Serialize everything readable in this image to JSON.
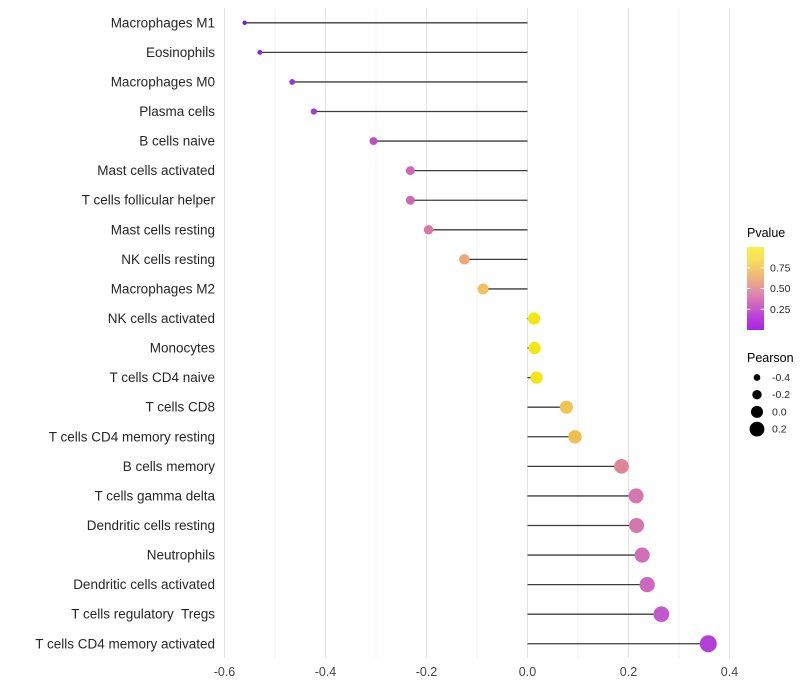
{
  "chart_data": {
    "type": "lollipop",
    "orientation": "horizontal",
    "title": "",
    "xlabel": "",
    "ylabel": "",
    "xlim": [
      -0.65,
      0.45
    ],
    "x_ticks": [
      -0.6,
      -0.4,
      -0.2,
      0.0,
      0.2,
      0.4
    ],
    "x_tick_labels": [
      "-0.6",
      "-0.4",
      "-0.2",
      "0.0",
      "0.2",
      "0.4"
    ],
    "minor_grid_step": 0.1,
    "grid_on": true,
    "legend_position": "right",
    "rows": [
      {
        "label": "Macrophages M1",
        "pearson": -0.56,
        "color": "#7B1FC4"
      },
      {
        "label": "Eosinophils",
        "pearson": -0.53,
        "color": "#8C2BD2"
      },
      {
        "label": "Macrophages M0",
        "pearson": -0.466,
        "color": "#9A35D4"
      },
      {
        "label": "Plasma cells",
        "pearson": -0.423,
        "color": "#A53CD1"
      },
      {
        "label": "B cells naive",
        "pearson": -0.305,
        "color": "#BC4DC5"
      },
      {
        "label": "Mast cells activated",
        "pearson": -0.232,
        "color": "#CE68B3"
      },
      {
        "label": "T cells follicular helper",
        "pearson": -0.232,
        "color": "#CE68B3"
      },
      {
        "label": "Mast cells resting",
        "pearson": -0.196,
        "color": "#D877A4"
      },
      {
        "label": "NK cells resting",
        "pearson": -0.125,
        "color": "#EEA878"
      },
      {
        "label": "Macrophages M2",
        "pearson": -0.088,
        "color": "#F2C05C"
      },
      {
        "label": "NK cells activated",
        "pearson": 0.013,
        "color": "#F2E713"
      },
      {
        "label": "Monocytes",
        "pearson": 0.014,
        "color": "#F2E713"
      },
      {
        "label": "T cells CD4 naive",
        "pearson": 0.018,
        "color": "#F2E713"
      },
      {
        "label": "T cells CD8",
        "pearson": 0.077,
        "color": "#EFC553"
      },
      {
        "label": "T cells CD4 memory resting",
        "pearson": 0.094,
        "color": "#EEBE50"
      },
      {
        "label": "B cells memory",
        "pearson": 0.186,
        "color": "#DC8596"
      },
      {
        "label": "T cells gamma delta",
        "pearson": 0.215,
        "color": "#D377AE"
      },
      {
        "label": "Dendritic cells resting",
        "pearson": 0.216,
        "color": "#D377AE"
      },
      {
        "label": "Neutrophils",
        "pearson": 0.227,
        "color": "#D06FB8"
      },
      {
        "label": "Dendritic cells activated",
        "pearson": 0.237,
        "color": "#CE67C0"
      },
      {
        "label": "T cells regulatory  Tregs",
        "pearson": 0.265,
        "color": "#C357CD"
      },
      {
        "label": "T cells CD4 memory activated",
        "pearson": 0.358,
        "color": "#B13FD8"
      }
    ],
    "legend": {
      "pvalue": {
        "title": "Pvalue",
        "tick_labels": [
          "0.75",
          "0.50",
          "0.25"
        ],
        "tick_values": [
          0.75,
          0.5,
          0.25
        ],
        "gradient_bottom_to_top": [
          "#A426E4",
          "#B93CD8",
          "#CC5FC4",
          "#DD85B0",
          "#EAA68C",
          "#F3C46E",
          "#F8E15A",
          "#FAF04E"
        ]
      },
      "pearson": {
        "title": "Pearson",
        "items": [
          {
            "label": "-0.4",
            "value": -0.4
          },
          {
            "label": "-0.2",
            "value": -0.2
          },
          {
            "label": "0.0",
            "value": 0.0
          },
          {
            "label": "0.2",
            "value": 0.2
          }
        ],
        "dot_color": "#000000"
      }
    },
    "colors": {
      "stem": "#3D3D3D",
      "grid_major": "#E3E3E3",
      "grid_minor": "#F0F0F0",
      "axis_text": "#454545",
      "row_label_text": "#262626",
      "legend_text": "#262626",
      "legend_title": "#000000",
      "background": "#FFFFFF"
    }
  }
}
